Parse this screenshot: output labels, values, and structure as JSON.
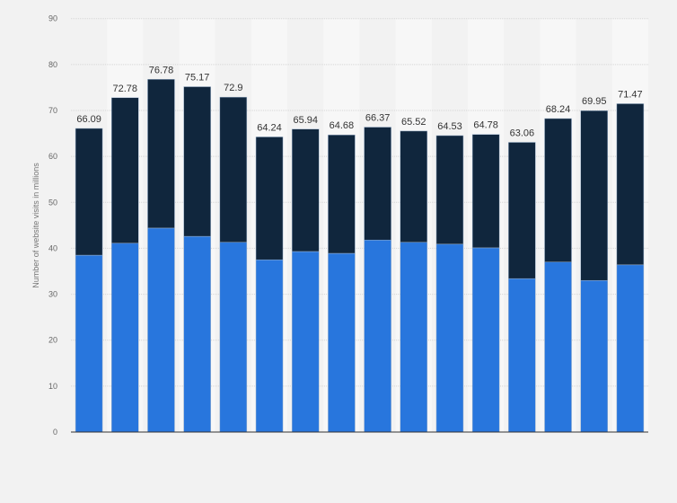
{
  "chart_data": {
    "type": "bar",
    "stacked": true,
    "title": "",
    "xlabel": "",
    "ylabel": "Number of website visits in millions",
    "ylim": [
      0,
      90
    ],
    "yticks": [
      0,
      10,
      20,
      30,
      40,
      50,
      60,
      70,
      80,
      90
    ],
    "grid": true,
    "legend": "none",
    "series": [
      {
        "color": "#2876dd",
        "values": [
          38.5,
          41.1,
          44.4,
          42.6,
          41.3,
          37.5,
          39.3,
          38.9,
          41.8,
          41.3,
          40.9,
          40.1,
          33.4,
          37.0,
          33.0,
          36.4
        ]
      },
      {
        "color": "#10263d",
        "values": [
          27.59,
          31.68,
          32.38,
          32.57,
          31.6,
          26.74,
          26.64,
          25.78,
          24.57,
          24.22,
          23.63,
          24.68,
          29.66,
          31.24,
          36.95,
          35.07
        ]
      }
    ],
    "totals": [
      "66.09",
      "72.78",
      "76.78",
      "75.17",
      "72.9",
      "64.24",
      "65.94",
      "64.68",
      "66.37",
      "65.52",
      "64.53",
      "64.78",
      "63.06",
      "68.24",
      "69.95",
      "71.47"
    ]
  }
}
